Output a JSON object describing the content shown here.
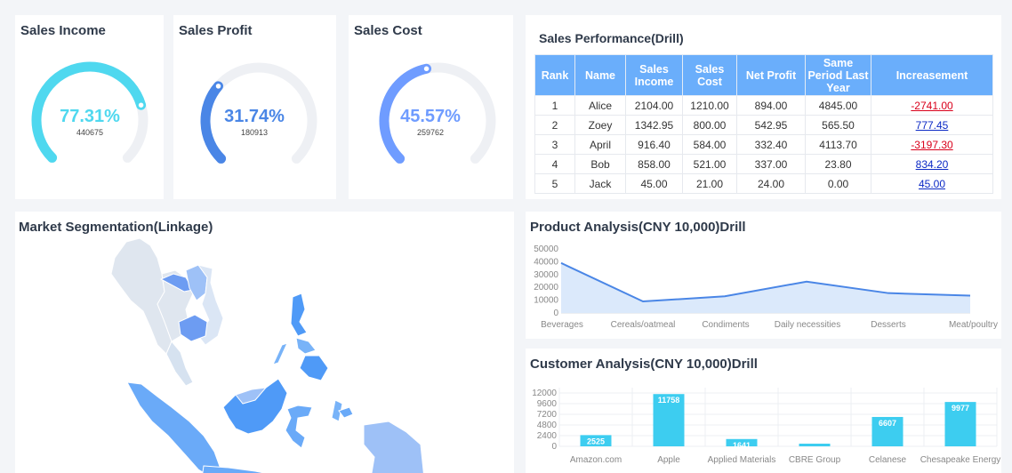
{
  "gauges": [
    {
      "title": "Sales Income",
      "percent_label": "77.31%",
      "percent": 77.31,
      "value": "440675",
      "color": "#4fd8ef"
    },
    {
      "title": "Sales Profit",
      "percent_label": "31.74%",
      "percent": 31.74,
      "value": "180913",
      "color": "#4a86e6"
    },
    {
      "title": "Sales Cost",
      "percent_label": "45.57%",
      "percent": 45.57,
      "value": "259762",
      "color": "#6f9cff"
    }
  ],
  "performance": {
    "title": "Sales Performance(Drill)",
    "headers": [
      "Rank",
      "Name",
      "Sales Income",
      "Sales Cost",
      "Net Profit",
      "Same Period Last Year",
      "Increasement"
    ],
    "rows": [
      [
        "1",
        "Alice",
        "2104.00",
        "1210.00",
        "894.00",
        "4845.00",
        "-2741.00"
      ],
      [
        "2",
        "Zoey",
        "1342.95",
        "800.00",
        "542.95",
        "565.50",
        "777.45"
      ],
      [
        "3",
        "April",
        "916.40",
        "584.00",
        "332.40",
        "4113.70",
        "-3197.30"
      ],
      [
        "4",
        "Bob",
        "858.00",
        "521.00",
        "337.00",
        "23.80",
        "834.20"
      ],
      [
        "5",
        "Jack",
        "45.00",
        "21.00",
        "24.00",
        "0.00",
        "45.00"
      ]
    ]
  },
  "market": {
    "title": "Market Segmentation(Linkage)"
  },
  "product": {
    "title": "Product Analysis(CNY 10,000)Drill"
  },
  "customer": {
    "title": "Customer Analysis(CNY 10,000)Drill"
  },
  "chart_data": [
    {
      "type": "area",
      "title": "Product Analysis(CNY 10,000)Drill",
      "categories": [
        "Beverages",
        "Cereals/oatmeal",
        "Condiments",
        "Daily necessities",
        "Desserts",
        "Meat/poultry"
      ],
      "values": [
        39000,
        9000,
        13000,
        24500,
        15500,
        13500
      ],
      "yticks": [
        "50000",
        "40000",
        "30000",
        "20000",
        "10000",
        "0"
      ],
      "ylim": [
        0,
        50000
      ],
      "color": "#4a86e6"
    },
    {
      "type": "bar",
      "title": "Customer Analysis(CNY 10,000)Drill",
      "categories": [
        "Amazon.com",
        "Apple",
        "Applied Materials",
        "CBRE Group",
        "Celanese",
        "Chesapeake Energy"
      ],
      "values": [
        2525,
        11758,
        1641,
        600,
        6607,
        9977
      ],
      "labels": [
        "2525",
        "11758",
        "1641",
        "",
        "6607",
        "9977"
      ],
      "yticks": [
        "12000",
        "9600",
        "7200",
        "4800",
        "2400",
        "0"
      ],
      "ylim": [
        0,
        12000
      ],
      "color": "#3dcdf0"
    }
  ]
}
